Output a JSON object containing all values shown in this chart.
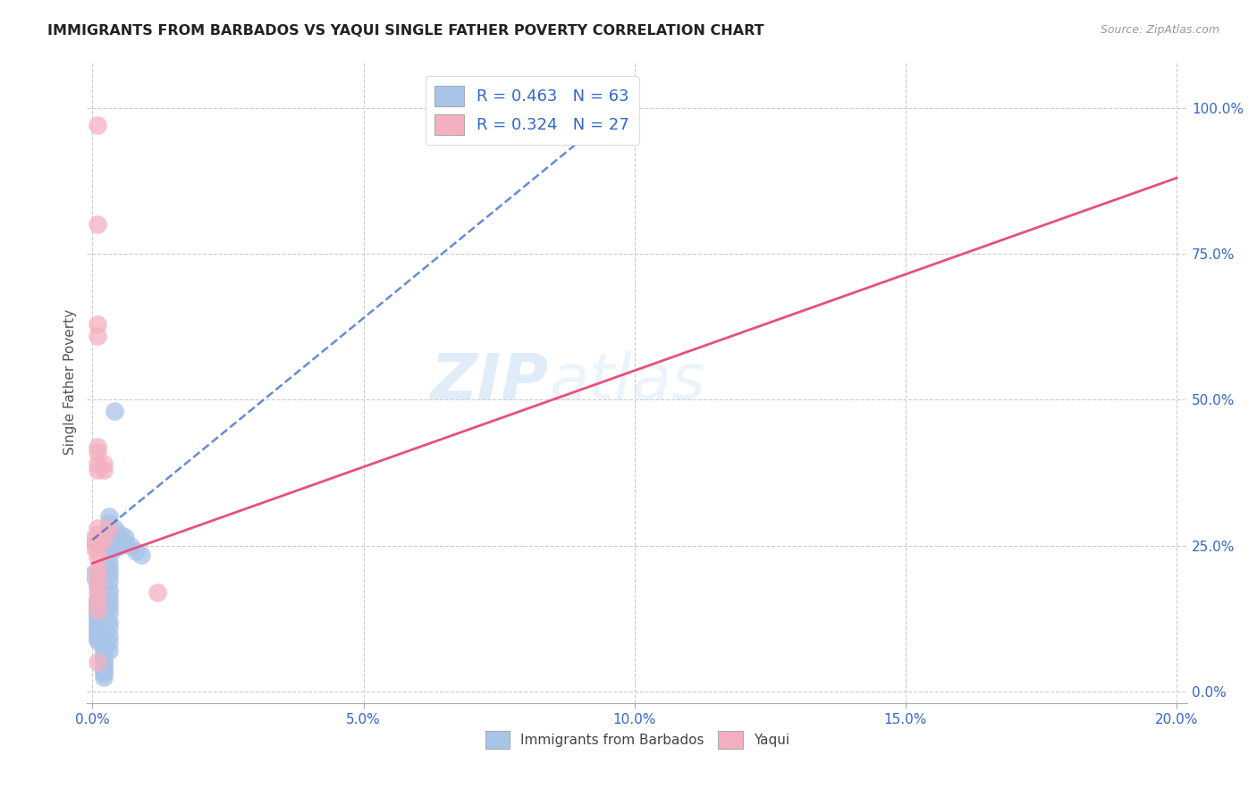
{
  "title": "IMMIGRANTS FROM BARBADOS VS YAQUI SINGLE FATHER POVERTY CORRELATION CHART",
  "source": "Source: ZipAtlas.com",
  "ylabel": "Single Father Poverty",
  "r_blue": 0.463,
  "n_blue": 63,
  "r_pink": 0.324,
  "n_pink": 27,
  "blue_color": "#a8c4e8",
  "pink_color": "#f4b0c0",
  "blue_line_color": "#4070c8",
  "pink_line_color": "#e8507a",
  "watermark_zip": "ZIP",
  "watermark_atlas": "atlas",
  "blue_line": [
    [
      0.0,
      0.26
    ],
    [
      0.1,
      1.02
    ]
  ],
  "pink_line": [
    [
      0.0,
      0.22
    ],
    [
      0.2,
      0.88
    ]
  ],
  "blue_scatter": [
    [
      0.0,
      0.2
    ],
    [
      0.001,
      0.18
    ],
    [
      0.001,
      0.16
    ],
    [
      0.001,
      0.155
    ],
    [
      0.001,
      0.15
    ],
    [
      0.001,
      0.145
    ],
    [
      0.001,
      0.14
    ],
    [
      0.001,
      0.135
    ],
    [
      0.001,
      0.13
    ],
    [
      0.001,
      0.125
    ],
    [
      0.001,
      0.12
    ],
    [
      0.001,
      0.115
    ],
    [
      0.001,
      0.11
    ],
    [
      0.001,
      0.105
    ],
    [
      0.001,
      0.1
    ],
    [
      0.001,
      0.095
    ],
    [
      0.001,
      0.09
    ],
    [
      0.001,
      0.088
    ],
    [
      0.002,
      0.085
    ],
    [
      0.002,
      0.08
    ],
    [
      0.002,
      0.075
    ],
    [
      0.002,
      0.07
    ],
    [
      0.002,
      0.065
    ],
    [
      0.002,
      0.06
    ],
    [
      0.002,
      0.055
    ],
    [
      0.002,
      0.05
    ],
    [
      0.002,
      0.045
    ],
    [
      0.002,
      0.04
    ],
    [
      0.002,
      0.035
    ],
    [
      0.002,
      0.03
    ],
    [
      0.002,
      0.025
    ],
    [
      0.003,
      0.3
    ],
    [
      0.003,
      0.29
    ],
    [
      0.003,
      0.28
    ],
    [
      0.003,
      0.26
    ],
    [
      0.003,
      0.245
    ],
    [
      0.003,
      0.235
    ],
    [
      0.003,
      0.22
    ],
    [
      0.003,
      0.21
    ],
    [
      0.003,
      0.2
    ],
    [
      0.003,
      0.19
    ],
    [
      0.003,
      0.175
    ],
    [
      0.003,
      0.165
    ],
    [
      0.003,
      0.155
    ],
    [
      0.003,
      0.145
    ],
    [
      0.003,
      0.135
    ],
    [
      0.003,
      0.12
    ],
    [
      0.003,
      0.11
    ],
    [
      0.003,
      0.095
    ],
    [
      0.003,
      0.085
    ],
    [
      0.003,
      0.07
    ],
    [
      0.004,
      0.48
    ],
    [
      0.004,
      0.28
    ],
    [
      0.004,
      0.26
    ],
    [
      0.004,
      0.245
    ],
    [
      0.005,
      0.27
    ],
    [
      0.005,
      0.26
    ],
    [
      0.005,
      0.25
    ],
    [
      0.006,
      0.265
    ],
    [
      0.006,
      0.255
    ],
    [
      0.007,
      0.25
    ],
    [
      0.008,
      0.24
    ],
    [
      0.009,
      0.235
    ]
  ],
  "pink_scatter": [
    [
      0.0,
      0.26
    ],
    [
      0.0,
      0.25
    ],
    [
      0.001,
      0.97
    ],
    [
      0.001,
      0.8
    ],
    [
      0.001,
      0.63
    ],
    [
      0.001,
      0.61
    ],
    [
      0.001,
      0.42
    ],
    [
      0.001,
      0.41
    ],
    [
      0.001,
      0.39
    ],
    [
      0.001,
      0.38
    ],
    [
      0.001,
      0.28
    ],
    [
      0.001,
      0.27
    ],
    [
      0.001,
      0.255
    ],
    [
      0.001,
      0.24
    ],
    [
      0.001,
      0.23
    ],
    [
      0.001,
      0.21
    ],
    [
      0.001,
      0.2
    ],
    [
      0.001,
      0.185
    ],
    [
      0.001,
      0.17
    ],
    [
      0.001,
      0.155
    ],
    [
      0.001,
      0.14
    ],
    [
      0.001,
      0.05
    ],
    [
      0.002,
      0.39
    ],
    [
      0.002,
      0.38
    ],
    [
      0.002,
      0.26
    ],
    [
      0.003,
      0.28
    ],
    [
      0.012,
      0.17
    ]
  ],
  "xlim": [
    -0.001,
    0.202
  ],
  "ylim": [
    -0.02,
    1.08
  ],
  "xticks": [
    0.0,
    0.05,
    0.1,
    0.15,
    0.2
  ],
  "xtick_labels": [
    "0.0%",
    "5.0%",
    "10.0%",
    "15.0%",
    "20.0%"
  ],
  "yticks": [
    0.0,
    0.25,
    0.5,
    0.75,
    1.0
  ],
  "ytick_labels_right": [
    "0.0%",
    "25.0%",
    "50.0%",
    "75.0%",
    "100.0%"
  ]
}
